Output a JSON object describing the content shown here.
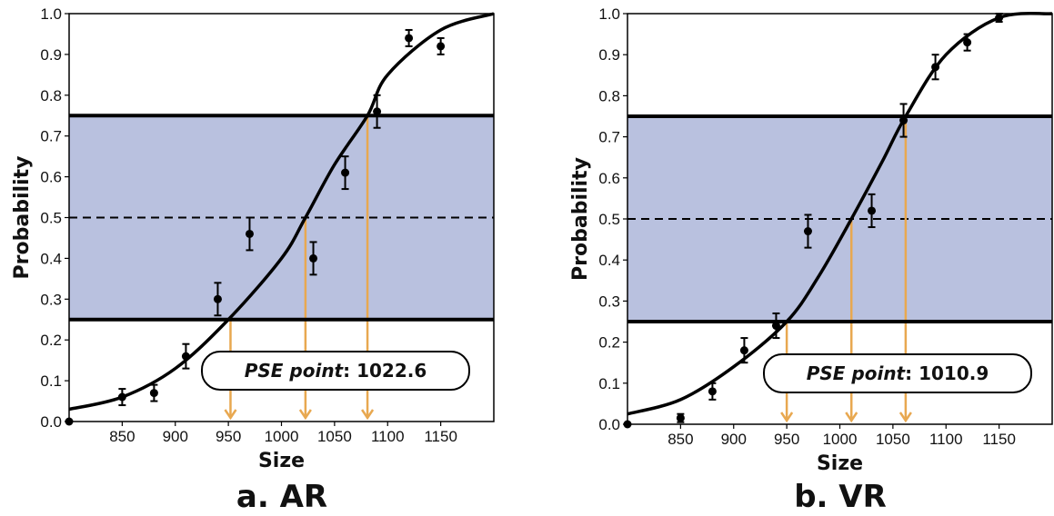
{
  "colors": {
    "band": "#b9c1df",
    "curve": "#000000",
    "arrow": "#e8a850",
    "points": "#000000"
  },
  "chart_data": [
    {
      "type": "scatter",
      "panel_label": "a. AR",
      "xlabel": "Size",
      "ylabel": "Probability",
      "xlim": [
        800,
        1200
      ],
      "ylim": [
        0.0,
        1.0
      ],
      "x_ticks": [
        "850",
        "900",
        "950",
        "1000",
        "1050",
        "1100",
        "1150"
      ],
      "y_ticks": [
        "0.0",
        "0.1",
        "0.2",
        "0.3",
        "0.4",
        "0.5",
        "0.6",
        "0.7",
        "0.8",
        "0.9",
        "1.0"
      ],
      "grid": false,
      "band": [
        0.25,
        0.75
      ],
      "threshold_lines": [
        0.25,
        0.75
      ],
      "dashed_line": 0.5,
      "pse_label_prefix": "PSE point",
      "pse_label_value": "1022.6",
      "pse": 1022.6,
      "arrow_x": [
        952,
        1022.6,
        1081
      ],
      "fit_curve": [
        {
          "x": 800,
          "y": 0.03
        },
        {
          "x": 850,
          "y": 0.06
        },
        {
          "x": 900,
          "y": 0.13
        },
        {
          "x": 950,
          "y": 0.25
        },
        {
          "x": 1000,
          "y": 0.4
        },
        {
          "x": 1022.6,
          "y": 0.5
        },
        {
          "x": 1050,
          "y": 0.63
        },
        {
          "x": 1081,
          "y": 0.75
        },
        {
          "x": 1100,
          "y": 0.85
        },
        {
          "x": 1150,
          "y": 0.96
        },
        {
          "x": 1200,
          "y": 1.0
        }
      ],
      "points": [
        {
          "x": 800,
          "y": 0.0,
          "err": 0.0
        },
        {
          "x": 850,
          "y": 0.06,
          "err": 0.02
        },
        {
          "x": 880,
          "y": 0.07,
          "err": 0.02
        },
        {
          "x": 910,
          "y": 0.16,
          "err": 0.03
        },
        {
          "x": 940,
          "y": 0.3,
          "err": 0.04
        },
        {
          "x": 970,
          "y": 0.46,
          "err": 0.04
        },
        {
          "x": 1030,
          "y": 0.4,
          "err": 0.04
        },
        {
          "x": 1060,
          "y": 0.61,
          "err": 0.04
        },
        {
          "x": 1090,
          "y": 0.76,
          "err": 0.04
        },
        {
          "x": 1120,
          "y": 0.94,
          "err": 0.02
        },
        {
          "x": 1150,
          "y": 0.92,
          "err": 0.02
        }
      ]
    },
    {
      "type": "scatter",
      "panel_label": "b. VR",
      "xlabel": "Size",
      "ylabel": "Probability",
      "xlim": [
        800,
        1200
      ],
      "ylim": [
        0.0,
        1.0
      ],
      "x_ticks": [
        "850",
        "900",
        "950",
        "1000",
        "1050",
        "1100",
        "1150"
      ],
      "y_ticks": [
        "0.0",
        "0.1",
        "0.2",
        "0.3",
        "0.4",
        "0.5",
        "0.6",
        "0.7",
        "0.8",
        "0.9",
        "1.0"
      ],
      "grid": false,
      "band": [
        0.25,
        0.75
      ],
      "threshold_lines": [
        0.25,
        0.75
      ],
      "dashed_line": 0.5,
      "pse_label_prefix": "PSE point",
      "pse_label_value": "1010.9",
      "pse": 1010.9,
      "arrow_x": [
        950,
        1010.9,
        1062
      ],
      "fit_curve": [
        {
          "x": 800,
          "y": 0.025
        },
        {
          "x": 850,
          "y": 0.06
        },
        {
          "x": 900,
          "y": 0.14
        },
        {
          "x": 950,
          "y": 0.25
        },
        {
          "x": 980,
          "y": 0.36
        },
        {
          "x": 1010.9,
          "y": 0.5
        },
        {
          "x": 1040,
          "y": 0.64
        },
        {
          "x": 1062,
          "y": 0.75
        },
        {
          "x": 1100,
          "y": 0.9
        },
        {
          "x": 1150,
          "y": 0.99
        },
        {
          "x": 1200,
          "y": 1.0
        }
      ],
      "points": [
        {
          "x": 800,
          "y": 0.0,
          "err": 0.0
        },
        {
          "x": 850,
          "y": 0.015,
          "err": 0.01
        },
        {
          "x": 880,
          "y": 0.08,
          "err": 0.02
        },
        {
          "x": 910,
          "y": 0.18,
          "err": 0.03
        },
        {
          "x": 940,
          "y": 0.24,
          "err": 0.03
        },
        {
          "x": 970,
          "y": 0.47,
          "err": 0.04
        },
        {
          "x": 1030,
          "y": 0.52,
          "err": 0.04
        },
        {
          "x": 1060,
          "y": 0.74,
          "err": 0.04
        },
        {
          "x": 1090,
          "y": 0.87,
          "err": 0.03
        },
        {
          "x": 1120,
          "y": 0.93,
          "err": 0.02
        },
        {
          "x": 1150,
          "y": 0.99,
          "err": 0.01
        }
      ]
    }
  ]
}
